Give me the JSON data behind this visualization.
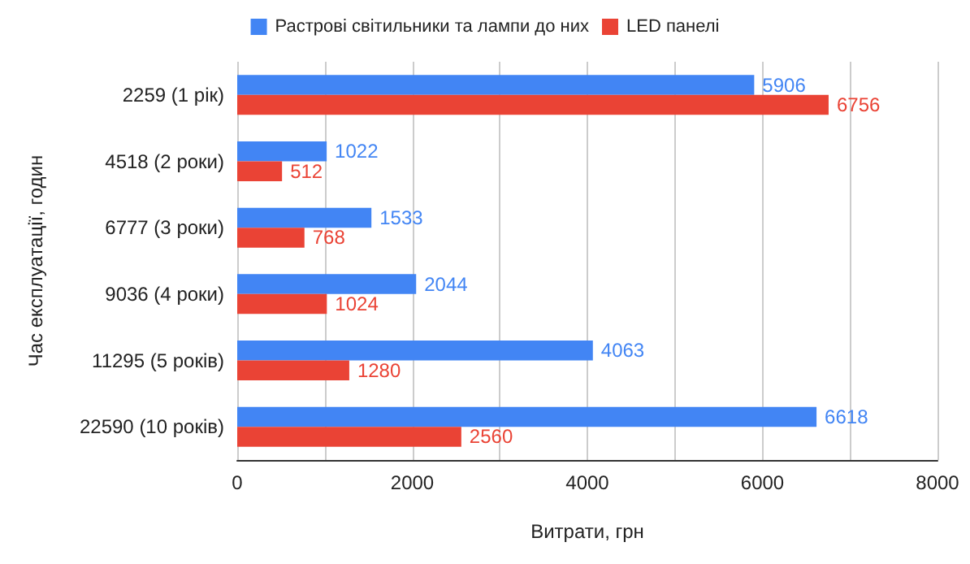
{
  "chart_data": {
    "type": "bar",
    "orientation": "horizontal",
    "xlabel": "Витрати, грн",
    "ylabel": "Час експлуатації, годин",
    "categories": [
      "2259 (1 рік)",
      "4518 (2 роки)",
      "6777 (3 роки)",
      "9036 (4 роки)",
      "11295 (5 років)",
      "22590 (10 років)"
    ],
    "series": [
      {
        "name": "Растрові світильники та лампи до них",
        "color": "#4285f4",
        "values": [
          5906,
          1022,
          1533,
          2044,
          4063,
          6618
        ]
      },
      {
        "name": "LED панелі",
        "color": "#ea4335",
        "values": [
          6756,
          512,
          768,
          1024,
          1280,
          2560
        ]
      }
    ],
    "xlim": [
      0,
      8000
    ],
    "xticks": [
      0,
      {
        "value": 1000,
        "label": null
      },
      2000,
      {
        "value": 3000,
        "label": null
      },
      4000,
      {
        "value": 5000,
        "label": null
      },
      6000,
      {
        "value": 7000,
        "label": null
      },
      8000
    ],
    "grid": "x",
    "legend": "top",
    "data_labels": true
  }
}
